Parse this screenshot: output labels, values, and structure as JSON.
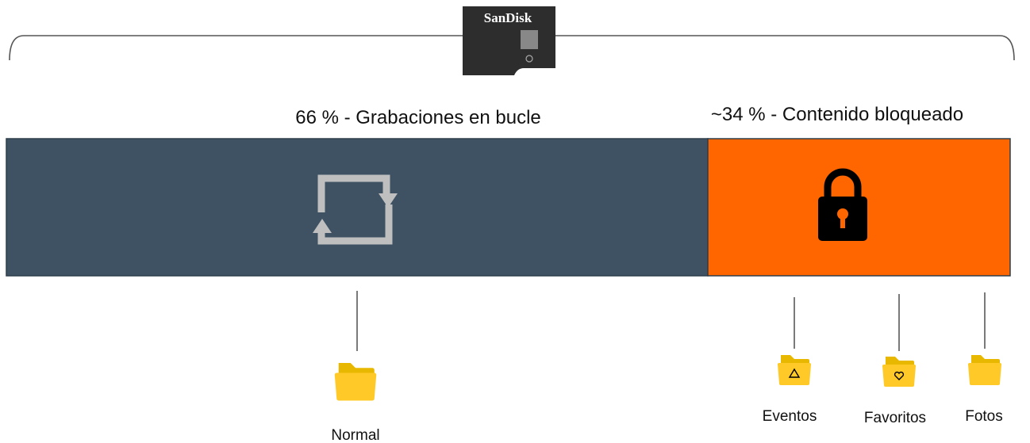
{
  "card": {
    "brand": "SanDisk"
  },
  "segments": [
    {
      "label": "66 % - Grabaciones en bucle"
    },
    {
      "label": "~34 % - Contenido bloqueado"
    }
  ],
  "folders": [
    {
      "label": "Normal"
    },
    {
      "label": "Eventos"
    },
    {
      "label": "Favoritos"
    },
    {
      "label": "Fotos"
    }
  ]
}
